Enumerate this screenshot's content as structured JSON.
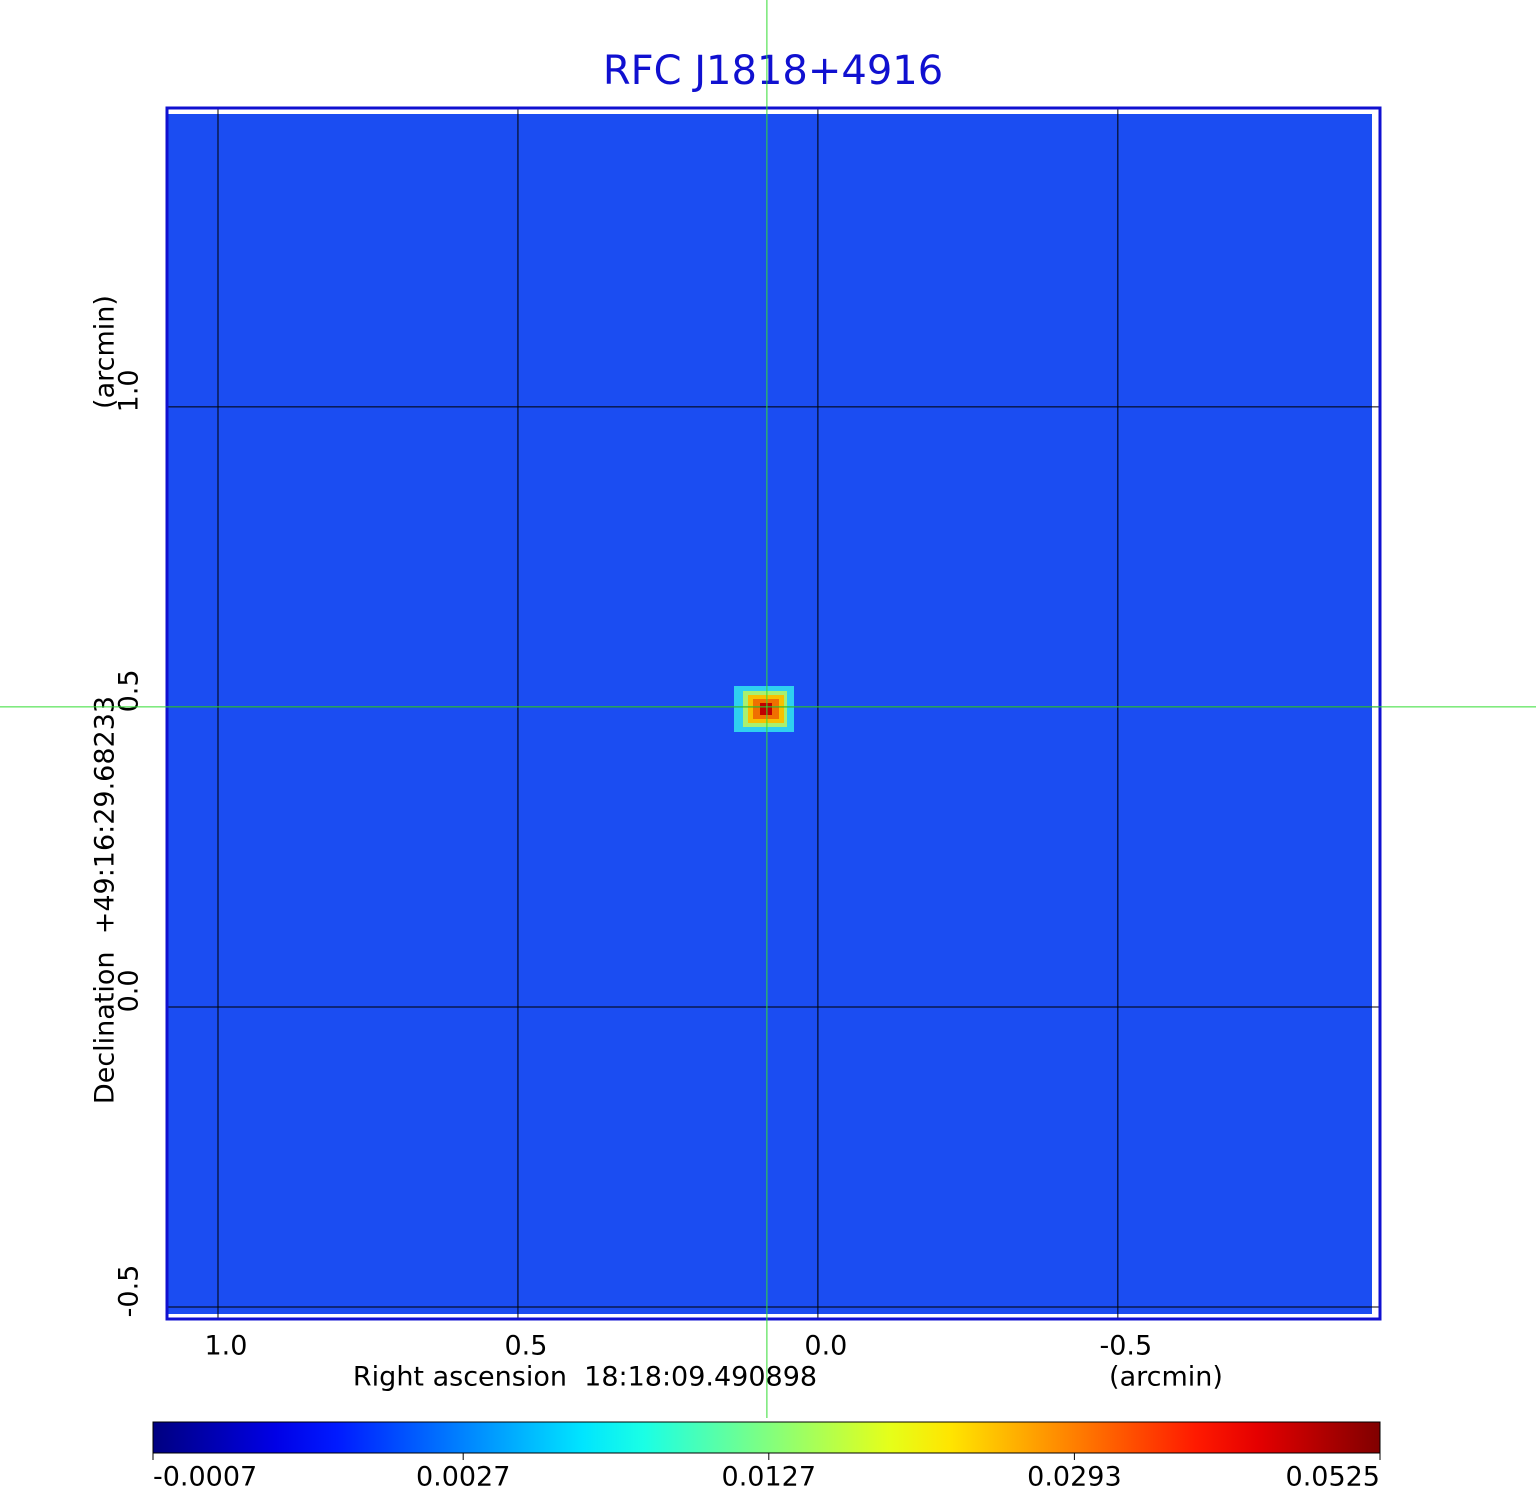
{
  "chart_data": {
    "type": "image",
    "title": "RFC J1818+4916",
    "x_label": "Right ascension  18:18:09.490898",
    "x_unit": "(arcmin)",
    "y_label": "Declination  +49:16:29.68233",
    "y_unit": "(arcmin)",
    "xlim": [
      1.085,
      -0.937
    ],
    "ylim": [
      -0.52,
      1.498
    ],
    "xticks": [
      {
        "value": 1,
        "label": "1.0"
      },
      0.5,
      {
        "value": 0,
        "label": "0.0"
      },
      -0.5
    ],
    "yticks": [
      -0.5,
      {
        "value": 0,
        "label": "0.0"
      },
      0.5,
      {
        "value": 1,
        "label": "1.0"
      }
    ],
    "grid": true,
    "crosshair": {
      "x": 0.085,
      "y": 0.5
    },
    "colormap": "jet",
    "colorbar_scale": "sqrt",
    "clim": [
      -0.0007,
      0.0525
    ],
    "colorbar_ticks": [
      -0.0007,
      0.0027,
      0.0127,
      0.0293,
      0.0525
    ]
  }
}
